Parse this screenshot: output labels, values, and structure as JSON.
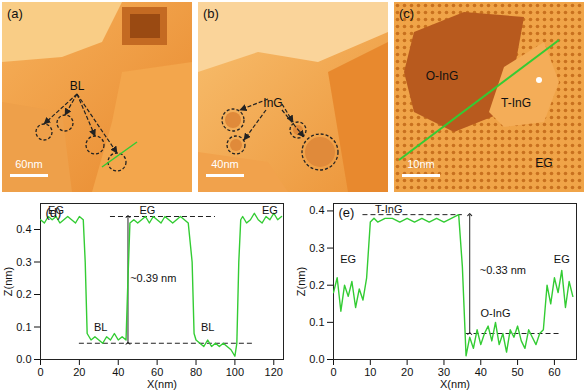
{
  "chart_data": [
    {
      "type": "line",
      "title": "(d)",
      "x_label": "X(nm)",
      "y_label": "Z(nm)",
      "color": "#33cc33",
      "xlim": [
        0,
        125
      ],
      "xticks": [
        0,
        20,
        40,
        60,
        80,
        100,
        120
      ],
      "ylim": [
        0,
        0.48
      ],
      "yticks": [
        {
          "value": 0,
          "label": "0.0"
        },
        0.1,
        0.2,
        0.3,
        0.4
      ],
      "x": [
        0,
        2,
        4,
        6,
        8,
        10,
        12,
        14,
        16,
        18,
        20,
        22,
        23,
        24,
        26,
        28,
        30,
        32,
        34,
        36,
        38,
        40,
        42,
        44,
        45,
        46,
        48,
        50,
        52,
        54,
        56,
        58,
        60,
        62,
        64,
        66,
        68,
        70,
        72,
        74,
        76,
        78,
        79,
        80,
        82,
        84,
        86,
        88,
        90,
        92,
        94,
        96,
        98,
        100,
        101,
        102,
        103,
        104,
        106,
        108,
        110,
        112,
        114,
        116,
        118,
        120,
        122,
        124
      ],
      "values": [
        0.43,
        0.42,
        0.44,
        0.43,
        0.44,
        0.42,
        0.43,
        0.44,
        0.43,
        0.42,
        0.44,
        0.43,
        0.3,
        0.08,
        0.06,
        0.07,
        0.06,
        0.05,
        0.07,
        0.06,
        0.08,
        0.06,
        0.07,
        0.06,
        0.25,
        0.42,
        0.43,
        0.42,
        0.43,
        0.44,
        0.42,
        0.44,
        0.43,
        0.42,
        0.44,
        0.43,
        0.42,
        0.43,
        0.44,
        0.43,
        0.42,
        0.3,
        0.08,
        0.06,
        0.05,
        0.04,
        0.06,
        0.04,
        0.05,
        0.04,
        0.05,
        0.04,
        0.03,
        0.01,
        0.05,
        0.3,
        0.43,
        0.44,
        0.42,
        0.43,
        0.45,
        0.43,
        0.42,
        0.44,
        0.43,
        0.45,
        0.43,
        0.44
      ],
      "annotations": [
        {
          "text": "EG",
          "x": 8,
          "y": 0.46
        },
        {
          "text": "EG",
          "x": 55,
          "y": 0.46
        },
        {
          "text": "EG",
          "x": 118,
          "y": 0.46
        },
        {
          "text": "BL",
          "x": 31,
          "y": 0.1
        },
        {
          "text": "BL",
          "x": 86,
          "y": 0.1
        },
        {
          "text": "~0.39 nm",
          "x": 58,
          "y": 0.25
        }
      ],
      "dashed_lines": [
        {
          "y": 0.44,
          "x": [
            36,
            90
          ]
        },
        {
          "y": 0.05,
          "x": [
            20,
            110
          ]
        }
      ],
      "arrows": [
        {
          "x": 45,
          "y": [
            0.05,
            0.44
          ]
        }
      ]
    },
    {
      "type": "line",
      "title": "(e)",
      "x_label": "X(nm)",
      "y_label": "Z(nm)",
      "color": "#33cc33",
      "xlim": [
        0,
        66
      ],
      "xticks": [
        0,
        10,
        20,
        30,
        40,
        50,
        60
      ],
      "ylim": [
        0,
        0.42
      ],
      "yticks": [
        {
          "value": 0,
          "label": "0.0"
        },
        0.1,
        0.2,
        0.3,
        0.4
      ],
      "x": [
        0,
        1,
        2,
        3,
        4,
        5,
        6,
        7,
        8,
        9,
        10,
        11,
        12,
        14,
        16,
        18,
        20,
        22,
        24,
        26,
        28,
        30,
        32,
        34,
        35,
        36,
        37,
        38,
        39,
        40,
        41,
        42,
        43,
        44,
        45,
        46,
        47,
        48,
        49,
        50,
        51,
        52,
        53,
        54,
        55,
        56,
        57,
        58,
        59,
        60,
        61,
        62,
        63,
        64,
        65
      ],
      "values": [
        0.18,
        0.22,
        0.13,
        0.2,
        0.17,
        0.21,
        0.14,
        0.19,
        0.16,
        0.22,
        0.37,
        0.38,
        0.37,
        0.38,
        0.38,
        0.37,
        0.38,
        0.37,
        0.38,
        0.37,
        0.38,
        0.37,
        0.38,
        0.39,
        0.25,
        0.01,
        0.06,
        0.03,
        0.08,
        0.04,
        0.07,
        0.09,
        0.05,
        0.1,
        0.04,
        0.07,
        0.02,
        0.08,
        0.06,
        0.09,
        0.05,
        0.03,
        0.08,
        0.06,
        0.04,
        0.07,
        0.08,
        0.2,
        0.15,
        0.22,
        0.18,
        0.24,
        0.14,
        0.21,
        0.17
      ],
      "annotations": [
        {
          "text": "EG",
          "x": 4,
          "y": 0.27
        },
        {
          "text": "T-InG",
          "x": 15,
          "y": 0.405
        },
        {
          "text": "~0.33 nm",
          "x": 46,
          "y": 0.24
        },
        {
          "text": "O-InG",
          "x": 44,
          "y": 0.125
        },
        {
          "text": "EG",
          "x": 62,
          "y": 0.27
        }
      ],
      "dashed_lines": [
        {
          "y": 0.39,
          "x": [
            8,
            35
          ]
        },
        {
          "y": 0.07,
          "x": [
            36,
            62
          ]
        }
      ],
      "arrows": [
        {
          "x": 37,
          "y": [
            0.07,
            0.39
          ]
        }
      ]
    }
  ],
  "images": [
    {
      "panel": "(a)",
      "scale_bar": "60nm",
      "labels": [
        "BL"
      ]
    },
    {
      "panel": "(b)",
      "scale_bar": "40nm",
      "labels": [
        "InG"
      ]
    },
    {
      "panel": "(c)",
      "scale_bar": "10nm",
      "labels": [
        "O-InG",
        "T-InG",
        "EG"
      ]
    }
  ]
}
